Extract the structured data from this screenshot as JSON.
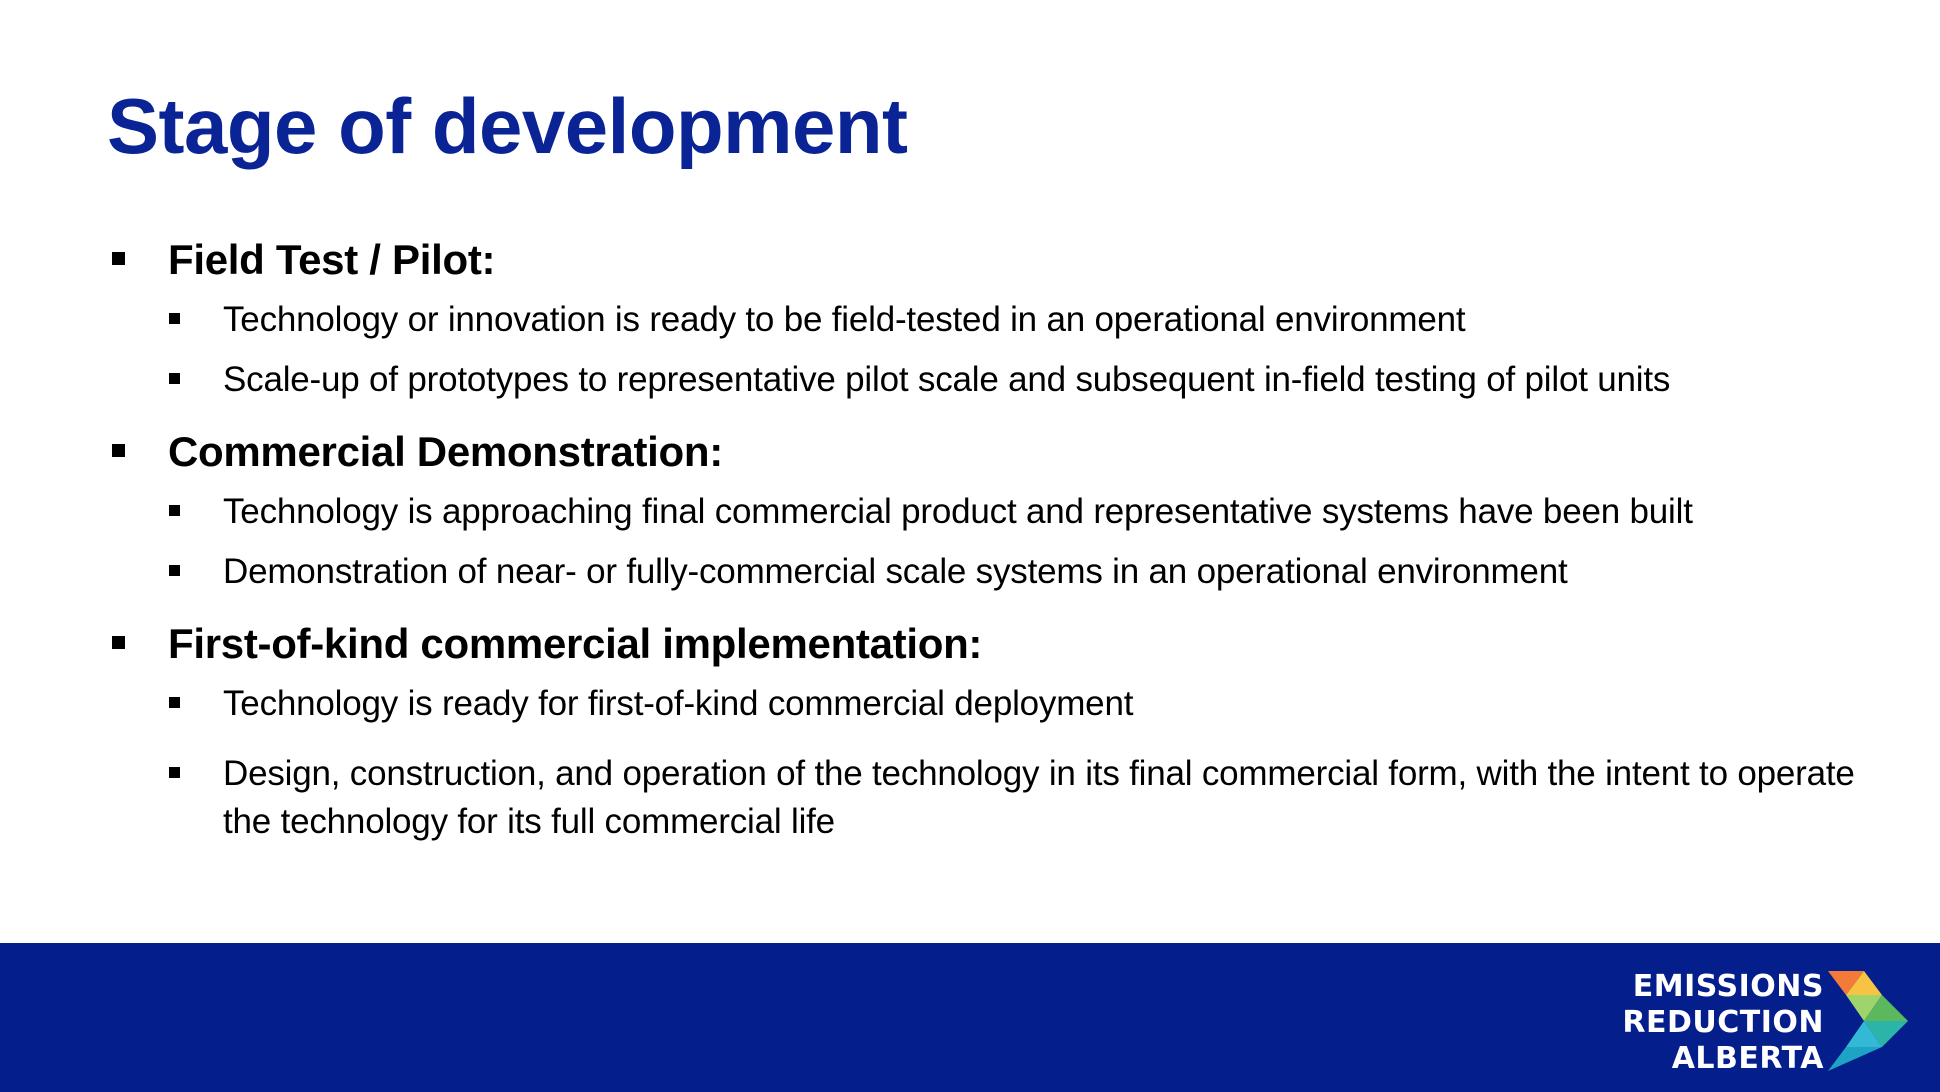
{
  "slide": {
    "title": "Stage of development",
    "sections": [
      {
        "heading": "Field Test / Pilot:",
        "items": [
          "Technology or innovation is ready to be field-tested in an operational environment",
          "Scale-up of prototypes to representative pilot scale and subsequent in-field testing of pilot units"
        ]
      },
      {
        "heading": "Commercial Demonstration:",
        "items": [
          "Technology is approaching final commercial product and representative systems have been built",
          "Demonstration of near- or fully-commercial scale systems in an operational environment"
        ]
      },
      {
        "heading": "First-of-kind commercial implementation:",
        "items": [
          "Technology is ready for first-of-kind commercial deployment",
          "Design, construction, and operation of the technology in its final commercial form, with the intent to operate the technology for its full commercial life"
        ]
      }
    ]
  },
  "footer": {
    "logo_line1": "EMISSIONS",
    "logo_line2": "REDUCTION",
    "logo_line3": "ALBERTA"
  },
  "colors": {
    "title": "#0a2496",
    "footer_bg": "#041e8c",
    "logo_orange": "#f47a3a",
    "logo_yellow": "#f6c342",
    "logo_green": "#5cb85c",
    "logo_lightgreen": "#9fd36b",
    "logo_teal": "#2bb5a8",
    "logo_cyan": "#33b8d6"
  }
}
